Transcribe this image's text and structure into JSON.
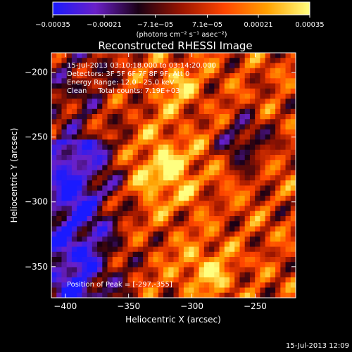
{
  "chart_data": {
    "type": "heatmap",
    "title": "Reconstructed RHESSI Image",
    "xlabel": "Heliocentric X (arcsec)",
    "ylabel": "Heliocentric Y (arcsec)",
    "xlim": [
      -411,
      -218
    ],
    "ylim": [
      -374,
      -185
    ],
    "x_ticks": [
      -400,
      -350,
      -300,
      -250
    ],
    "y_ticks": [
      -200,
      -250,
      -300,
      -350
    ],
    "colorbar": {
      "unit_label": "(photons cm⁻² s⁻¹ asec⁻²)",
      "range": [
        -0.00035,
        0.00035
      ],
      "tick_labels": [
        "−0.00035",
        "−0.00021",
        "−7.1e−05",
        "7.1e−05",
        "0.00021",
        "0.00035"
      ],
      "tick_values": [
        -0.00035,
        -0.00021,
        -7.1e-05,
        7.1e-05,
        0.00021,
        0.00035
      ],
      "colors": [
        "#1a1aff",
        "#6a20c8",
        "#1a0014",
        "#9a1500",
        "#ff4500",
        "#ffa000",
        "#ffff80"
      ]
    },
    "annotations": {
      "time_range": "15-Jul-2013 03:10:18.000 to 03:14:20.000",
      "detectors": "Detectors: 3F 5F 6F 7F 8F 9F, Att 0",
      "energy": "Energy Range: 12.0 - 25.0 keV",
      "clean": "Clean     Total counts: 7.19E+03",
      "peak": "Position of Peak = [-297,-355]"
    },
    "peak_position": [
      -297,
      -355
    ],
    "timestamp": "15-Jul-2013 12:09"
  }
}
